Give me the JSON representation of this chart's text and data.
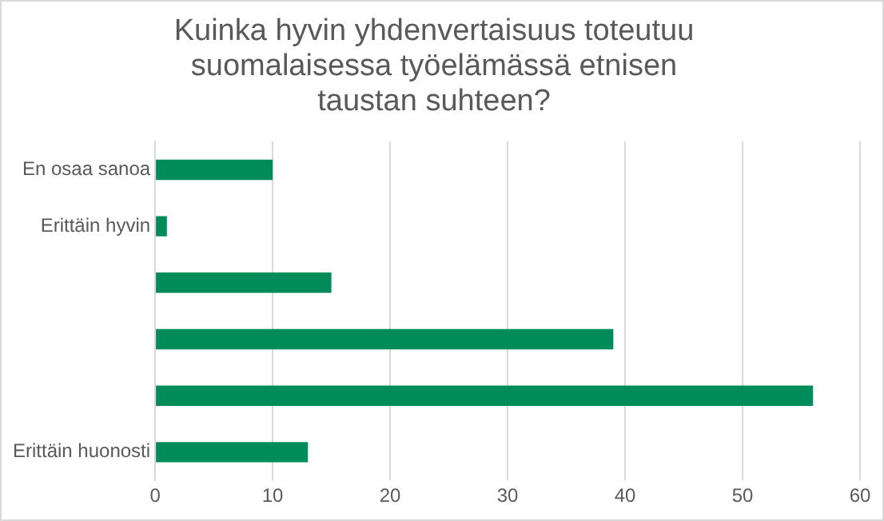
{
  "chart_data": {
    "type": "bar",
    "orientation": "horizontal",
    "title": "Kuinka hyvin yhdenvertaisuus toteutuu suomalaisessa työelämässä etnisen taustan suhteen?",
    "categories": [
      "En osaa sanoa",
      "Erittäin hyvin",
      null,
      null,
      null,
      "Erittäin huonosti"
    ],
    "values": [
      10,
      1,
      15,
      39,
      56,
      13
    ],
    "color": "#008c5a",
    "xlim": [
      0,
      60
    ],
    "xticks": [
      0,
      10,
      20,
      30,
      40,
      50,
      60
    ],
    "grid": "x"
  }
}
